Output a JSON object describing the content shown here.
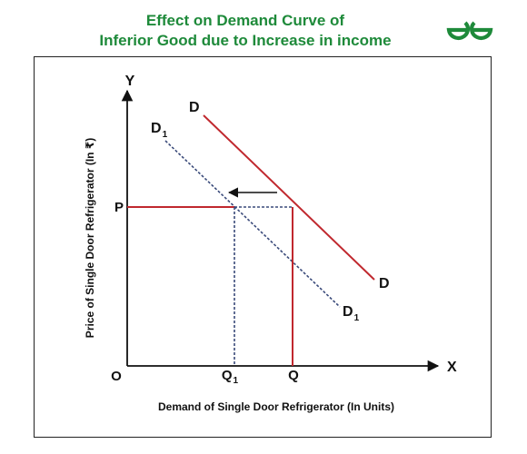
{
  "header": {
    "title_line1": "Effect on Demand Curve of",
    "title_line2": "Inferior Good due to Increase in income",
    "title_color": "#1e8a3a",
    "logo_icon": "geeksforgeeks-logo-icon"
  },
  "diagram": {
    "axis": {
      "y_letter": "Y",
      "x_letter": "X",
      "origin": "O",
      "y_axis_label": "Price of Single Door Refrigerator (In ₹)",
      "x_axis_label": "Demand of Single Door Refrigerator (In Units)"
    },
    "points": {
      "price": "P",
      "qty_new_main": "Q",
      "qty_new_sub": "1",
      "qty_old": "Q"
    },
    "curves": {
      "original": {
        "label": "D",
        "color": "#c0282e"
      },
      "shifted": {
        "label_main": "D",
        "label_sub": "1",
        "color": "#3a4a7a"
      }
    }
  }
}
